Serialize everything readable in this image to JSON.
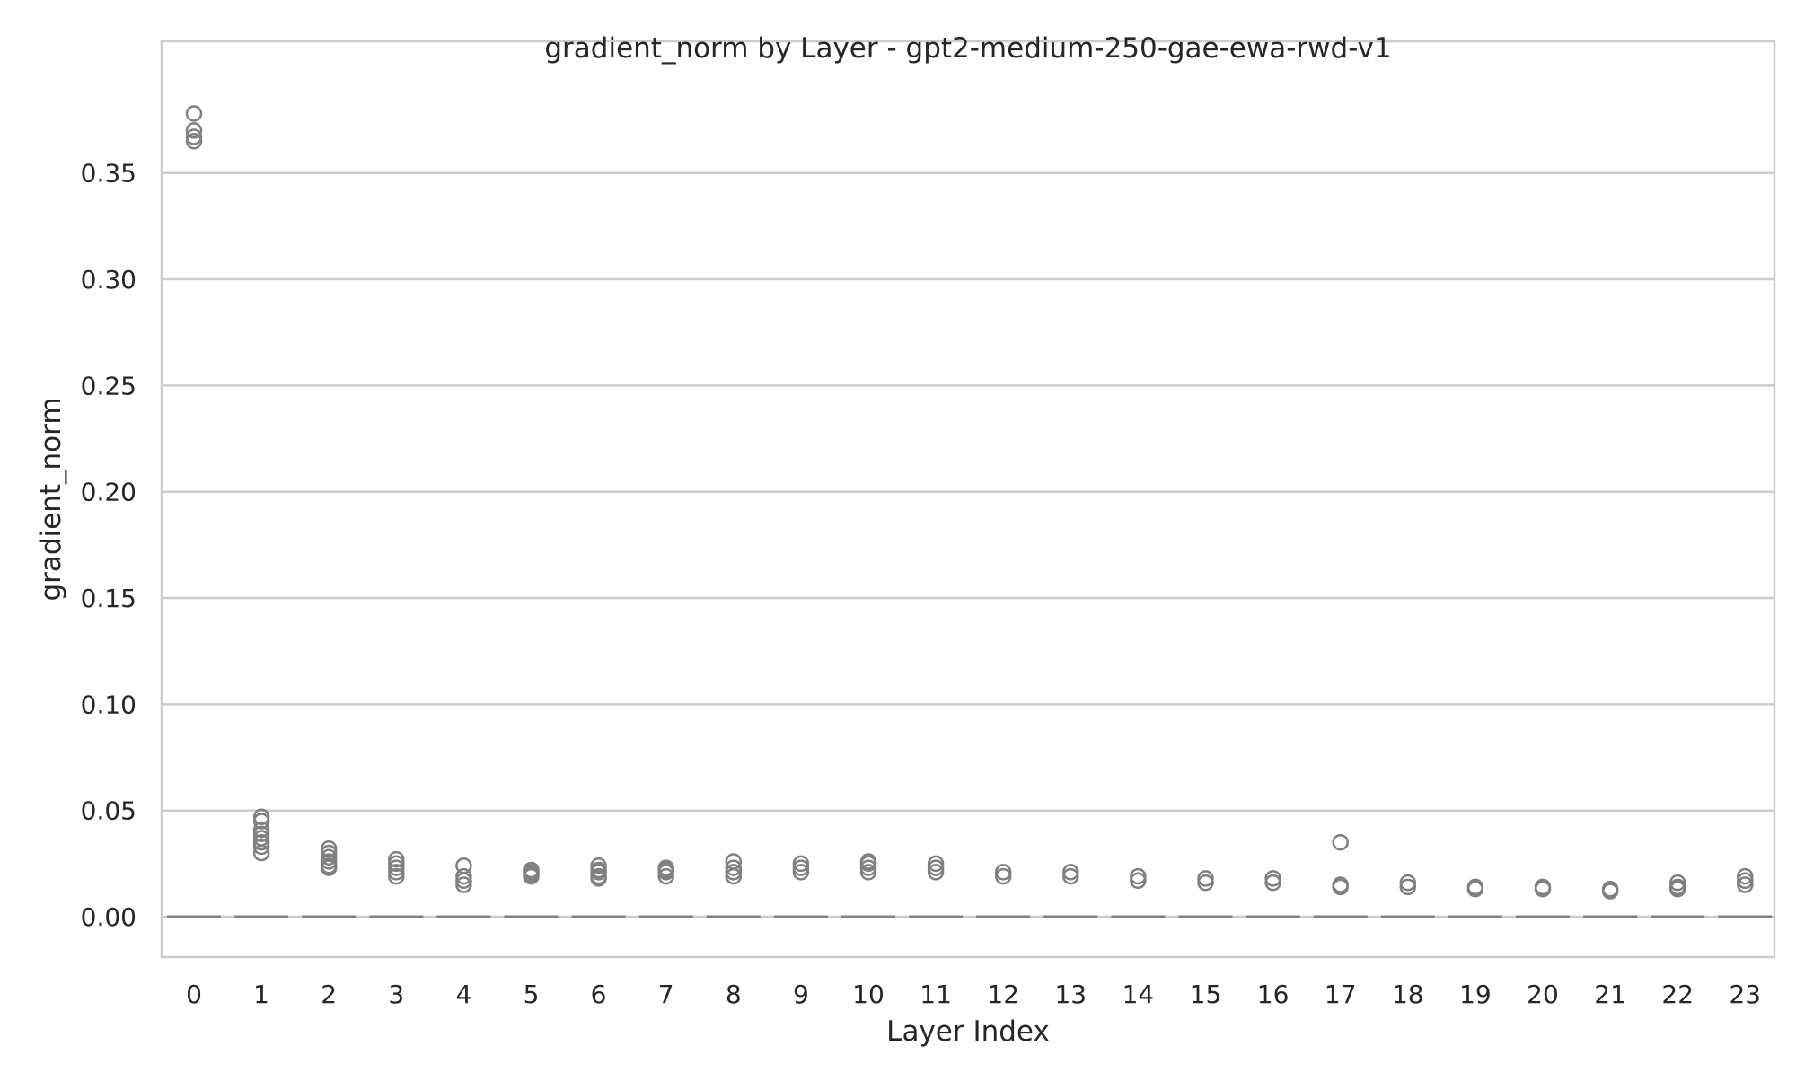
{
  "chart_data": {
    "type": "box",
    "title": "gradient_norm by Layer - gpt2-medium-250-gae-ewa-rwd-v1",
    "xlabel": "Layer Index",
    "ylabel": "gradient_norm",
    "categories": [
      "0",
      "1",
      "2",
      "3",
      "4",
      "5",
      "6",
      "7",
      "8",
      "9",
      "10",
      "11",
      "12",
      "13",
      "14",
      "15",
      "16",
      "17",
      "18",
      "19",
      "20",
      "21",
      "22",
      "23"
    ],
    "yticks": [
      "0.00",
      "0.05",
      "0.10",
      "0.15",
      "0.20",
      "0.25",
      "0.30",
      "0.35"
    ],
    "ylim": [
      -0.019,
      0.412
    ],
    "grid": "y",
    "box_color": "#808080",
    "grid_color": "#cccccc",
    "medians": [
      0,
      0,
      0,
      0,
      0,
      0,
      0,
      0,
      0,
      0,
      0,
      0,
      0,
      0,
      0,
      0,
      0,
      0,
      0,
      0,
      0,
      0,
      0,
      0
    ],
    "fliers": [
      [
        0.378,
        0.37,
        0.367,
        0.365
      ],
      [
        0.047,
        0.045,
        0.041,
        0.039,
        0.037,
        0.035,
        0.033,
        0.03
      ],
      [
        0.032,
        0.03,
        0.028,
        0.026,
        0.024,
        0.023
      ],
      [
        0.027,
        0.025,
        0.023,
        0.021,
        0.019
      ],
      [
        0.024,
        0.019,
        0.017,
        0.015
      ],
      [
        0.022,
        0.021,
        0.02,
        0.019
      ],
      [
        0.024,
        0.022,
        0.021,
        0.019,
        0.018
      ],
      [
        0.023,
        0.022,
        0.021,
        0.019
      ],
      [
        0.026,
        0.023,
        0.021,
        0.019
      ],
      [
        0.025,
        0.023,
        0.021
      ],
      [
        0.026,
        0.025,
        0.023,
        0.021
      ],
      [
        0.025,
        0.023,
        0.021
      ],
      [
        0.021,
        0.019
      ],
      [
        0.021,
        0.019
      ],
      [
        0.019,
        0.017
      ],
      [
        0.018,
        0.016
      ],
      [
        0.018,
        0.016
      ],
      [
        0.035,
        0.015,
        0.014
      ],
      [
        0.016,
        0.014
      ],
      [
        0.014,
        0.013
      ],
      [
        0.014,
        0.013
      ],
      [
        0.013,
        0.012
      ],
      [
        0.016,
        0.014,
        0.013
      ],
      [
        0.019,
        0.017,
        0.015
      ]
    ]
  }
}
